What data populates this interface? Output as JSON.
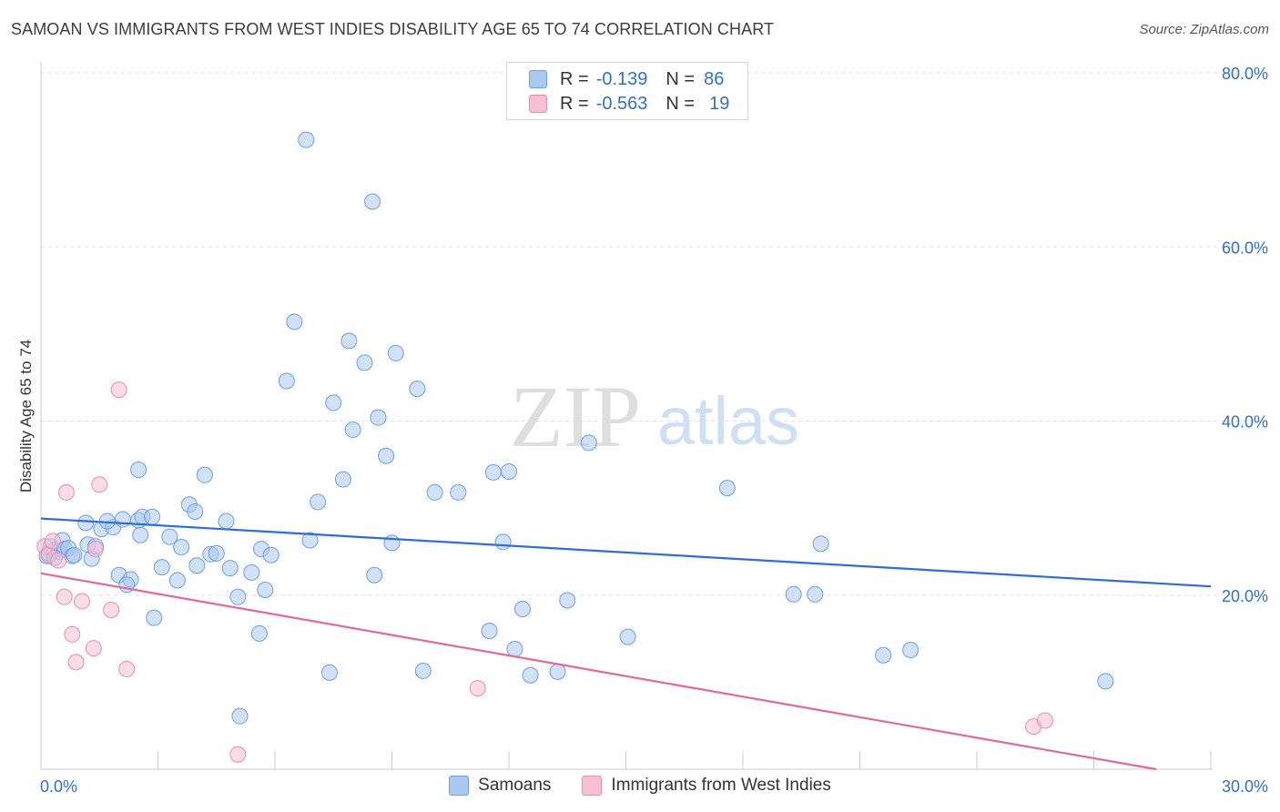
{
  "title": "SAMOAN VS IMMIGRANTS FROM WEST INDIES DISABILITY AGE 65 TO 74 CORRELATION CHART",
  "source": "Source: ZipAtlas.com",
  "watermark": {
    "zip": "ZIP",
    "atlas": "atlas"
  },
  "legend": {
    "rows": [
      {
        "r_label": "R =",
        "r_value": "-0.139",
        "n_label": "N =",
        "n_value": "86",
        "color": "#a9c8f2",
        "border": "#6f9fe0"
      },
      {
        "r_label": "R =",
        "r_value": "-0.563",
        "n_label": "N =",
        "n_value": "19",
        "color": "#f7bfd2",
        "border": "#e58fb0"
      }
    ]
  },
  "bottom_legend": [
    {
      "name": "Samoans",
      "color": "#a9c8f2",
      "border": "#6f9fe0"
    },
    {
      "name": "Immigrants from West Indies",
      "color": "#f7bfd2",
      "border": "#e58fb0"
    }
  ],
  "chart_data": {
    "type": "scatter",
    "title": "SAMOAN VS IMMIGRANTS FROM WEST INDIES DISABILITY AGE 65 TO 74 CORRELATION CHART",
    "xlabel": "",
    "ylabel": "Disability Age 65 to 74",
    "xlim": [
      0,
      30
    ],
    "ylim": [
      0,
      80
    ],
    "x_tick_labels": [
      {
        "value": 0,
        "label": "0.0%"
      },
      {
        "value": 30,
        "label": "30.0%"
      }
    ],
    "y_tick_labels": [
      {
        "value": 20,
        "label": "20.0%"
      },
      {
        "value": 40,
        "label": "40.0%"
      },
      {
        "value": 60,
        "label": "60.0%"
      },
      {
        "value": 80,
        "label": "80.0%"
      }
    ],
    "grid": true,
    "legend_position": "top-center",
    "series": [
      {
        "name": "Samoans",
        "color": "#6f9fe0",
        "fill": "#a9c8f2",
        "trend": {
          "x": [
            0,
            30
          ],
          "y": [
            28.8,
            21.0
          ],
          "color": "#2f6fcf"
        },
        "points": [
          [
            0.15,
            24.5
          ],
          [
            0.2,
            24.8
          ],
          [
            0.25,
            25.6
          ],
          [
            0.35,
            25.2
          ],
          [
            0.45,
            25.0
          ],
          [
            0.55,
            26.3
          ],
          [
            0.6,
            25.3
          ],
          [
            0.7,
            25.4
          ],
          [
            0.8,
            24.5
          ],
          [
            0.85,
            24.6
          ],
          [
            1.2,
            25.8
          ],
          [
            1.3,
            24.2
          ],
          [
            1.4,
            25.6
          ],
          [
            1.15,
            28.3
          ],
          [
            1.55,
            27.6
          ],
          [
            1.85,
            27.8
          ],
          [
            2.1,
            28.7
          ],
          [
            2.5,
            28.6
          ],
          [
            2.6,
            29.0
          ],
          [
            2.85,
            29.0
          ],
          [
            2.55,
            26.9
          ],
          [
            2.0,
            22.3
          ],
          [
            2.3,
            21.8
          ],
          [
            2.2,
            21.2
          ],
          [
            2.5,
            34.4
          ],
          [
            2.9,
            17.4
          ],
          [
            3.1,
            23.2
          ],
          [
            3.3,
            26.7
          ],
          [
            3.5,
            21.7
          ],
          [
            3.6,
            25.5
          ],
          [
            3.8,
            30.4
          ],
          [
            3.95,
            29.6
          ],
          [
            4.0,
            23.4
          ],
          [
            4.2,
            33.8
          ],
          [
            4.35,
            24.7
          ],
          [
            4.5,
            24.8
          ],
          [
            4.75,
            28.5
          ],
          [
            4.85,
            23.1
          ],
          [
            5.05,
            19.8
          ],
          [
            5.1,
            6.1
          ],
          [
            5.4,
            22.6
          ],
          [
            5.6,
            15.6
          ],
          [
            5.65,
            25.3
          ],
          [
            5.75,
            20.6
          ],
          [
            5.9,
            24.6
          ],
          [
            6.3,
            44.6
          ],
          [
            6.5,
            51.4
          ],
          [
            6.9,
            26.3
          ],
          [
            7.1,
            30.7
          ],
          [
            7.4,
            11.1
          ],
          [
            7.5,
            42.1
          ],
          [
            7.75,
            33.3
          ],
          [
            7.9,
            49.2
          ],
          [
            8.0,
            39.0
          ],
          [
            8.3,
            46.7
          ],
          [
            8.55,
            22.3
          ],
          [
            8.65,
            40.4
          ],
          [
            8.85,
            36.0
          ],
          [
            9.0,
            26.0
          ],
          [
            9.1,
            47.8
          ],
          [
            9.65,
            43.7
          ],
          [
            9.8,
            11.3
          ],
          [
            10.1,
            31.8
          ],
          [
            10.7,
            31.8
          ],
          [
            11.5,
            15.9
          ],
          [
            11.6,
            34.1
          ],
          [
            11.85,
            26.1
          ],
          [
            12.0,
            34.2
          ],
          [
            12.15,
            13.8
          ],
          [
            12.35,
            18.4
          ],
          [
            12.55,
            10.8
          ],
          [
            13.25,
            11.2
          ],
          [
            13.5,
            19.4
          ],
          [
            14.05,
            37.5
          ],
          [
            15.05,
            15.2
          ],
          [
            17.6,
            32.3
          ],
          [
            19.3,
            20.1
          ],
          [
            19.85,
            20.1
          ],
          [
            20.0,
            25.9
          ],
          [
            21.6,
            13.1
          ],
          [
            22.3,
            13.7
          ],
          [
            27.3,
            10.1
          ],
          [
            6.8,
            72.3
          ],
          [
            8.5,
            65.2
          ],
          [
            1.7,
            28.5
          ],
          [
            0.35,
            24.3
          ]
        ]
      },
      {
        "name": "Immigrants from West Indies",
        "color": "#e58fb0",
        "fill": "#f7bfd2",
        "trend": {
          "x": [
            0,
            28.6
          ],
          "y": [
            22.5,
            0.0
          ],
          "color": "#e06a98"
        },
        "points": [
          [
            0.1,
            25.6
          ],
          [
            0.2,
            24.6
          ],
          [
            0.3,
            26.2
          ],
          [
            0.45,
            24.0
          ],
          [
            0.6,
            19.8
          ],
          [
            0.65,
            31.8
          ],
          [
            0.8,
            15.5
          ],
          [
            0.9,
            12.3
          ],
          [
            1.05,
            19.3
          ],
          [
            1.35,
            13.9
          ],
          [
            1.4,
            25.3
          ],
          [
            1.5,
            32.7
          ],
          [
            1.8,
            18.3
          ],
          [
            2.0,
            43.6
          ],
          [
            2.2,
            11.5
          ],
          [
            5.05,
            1.7
          ],
          [
            11.2,
            9.3
          ],
          [
            25.45,
            4.9
          ],
          [
            25.75,
            5.6
          ]
        ]
      }
    ]
  }
}
